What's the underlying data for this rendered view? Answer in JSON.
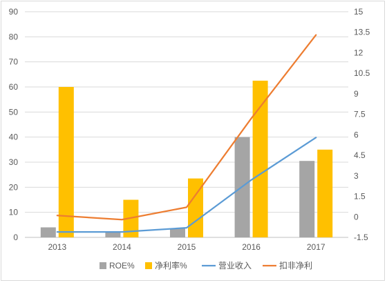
{
  "chart_data": {
    "type": "bar",
    "categories": [
      "2013",
      "2014",
      "2015",
      "2016",
      "2017"
    ],
    "series": [
      {
        "name": "ROE%",
        "type": "bar",
        "axis": "left",
        "color": "#a5a5a5",
        "values": [
          4,
          2,
          3.5,
          40,
          30.5
        ]
      },
      {
        "name": "净利率%",
        "type": "bar",
        "axis": "left",
        "color": "#ffc000",
        "values": [
          60,
          15,
          23.5,
          62.5,
          35
        ]
      },
      {
        "name": "营业收入",
        "type": "line",
        "axis": "right",
        "color": "#5b9bd5",
        "values": [
          -1.1,
          -1.1,
          -0.8,
          2.7,
          5.8
        ]
      },
      {
        "name": "扣非净利",
        "type": "line",
        "axis": "right",
        "color": "#ed7d31",
        "values": [
          0.1,
          -0.2,
          0.7,
          7.2,
          13.3
        ]
      }
    ],
    "y_left": {
      "min": 0,
      "max": 90,
      "ticks": [
        "0",
        "10",
        "20",
        "30",
        "40",
        "50",
        "60",
        "70",
        "80",
        "90"
      ]
    },
    "y_right": {
      "min": -1.5,
      "max": 15,
      "ticks": [
        "-1.5",
        "0",
        "1.5",
        "3",
        "4.5",
        "6",
        "7.5",
        "9",
        "10.5",
        "12",
        "13.5",
        "15"
      ]
    },
    "title": "",
    "xlabel": "",
    "ylabel": "",
    "grid": true,
    "legend_position": "bottom",
    "colors": {
      "grid": "#d9d9d9",
      "tick_text": "#595959",
      "frame": "#d9d9d9"
    }
  }
}
